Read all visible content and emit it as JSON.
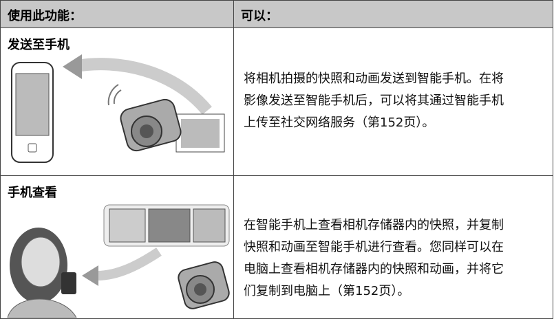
{
  "table": {
    "header": [
      "使用此功能：",
      "可以："
    ],
    "rows": [
      {
        "feature": "发送至手机",
        "description": "将相机拍摄的快照和动画发送到智能手机。在将影像发送至智能手机后，可以将其通过智能手机上传至社交网络服务（第152页）。"
      },
      {
        "feature": "手机查看",
        "description": "在智能手机上查看相机存储器内的快照，并复制快照和动画至智能手机进行查看。您同样可以在电脑上查看相机存储器内的快照和动画，并将它们复制到电脑上（第152页）。"
      }
    ]
  }
}
